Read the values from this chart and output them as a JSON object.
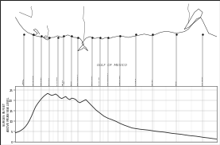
{
  "bg_color": "#ffffff",
  "map_bg": "#ffffff",
  "chart_bg": "#ffffff",
  "line_color": "#222222",
  "grid_color": "#bbbbbb",
  "text_gulf": "GULF  OF  MEXICO",
  "ylabel_lines": [
    "SURGES IN FEET",
    "ABOVE MEAN SEA LEVEL"
  ],
  "yticks": [
    0,
    5,
    10,
    15,
    20,
    25
  ],
  "ylim": [
    0,
    27
  ],
  "map_ratio": 0.6,
  "chart_ratio": 0.4,
  "surge_x": [
    0.0,
    0.01,
    0.02,
    0.03,
    0.04,
    0.05,
    0.06,
    0.07,
    0.08,
    0.09,
    0.1,
    0.11,
    0.12,
    0.13,
    0.14,
    0.15,
    0.16,
    0.17,
    0.18,
    0.19,
    0.2,
    0.21,
    0.22,
    0.23,
    0.24,
    0.25,
    0.26,
    0.27,
    0.28,
    0.29,
    0.3,
    0.31,
    0.32,
    0.33,
    0.34,
    0.35,
    0.36,
    0.37,
    0.38,
    0.39,
    0.4,
    0.42,
    0.44,
    0.46,
    0.48,
    0.5,
    0.52,
    0.54,
    0.56,
    0.58,
    0.6,
    0.62,
    0.64,
    0.66,
    0.68,
    0.7,
    0.72,
    0.74,
    0.76,
    0.78,
    0.8,
    0.82,
    0.84,
    0.86,
    0.88,
    0.9,
    0.92,
    0.94,
    0.96,
    0.98,
    1.0
  ],
  "surge_y": [
    4.5,
    4.8,
    5.2,
    5.8,
    6.5,
    7.5,
    8.8,
    10.5,
    12.5,
    14.8,
    17.0,
    18.5,
    19.8,
    21.0,
    22.0,
    22.8,
    23.5,
    23.0,
    22.5,
    22.8,
    23.2,
    22.5,
    21.5,
    21.0,
    21.5,
    22.0,
    21.0,
    20.5,
    21.2,
    21.0,
    20.5,
    19.5,
    19.0,
    19.5,
    20.0,
    20.5,
    19.5,
    18.5,
    17.5,
    16.5,
    15.5,
    14.0,
    12.5,
    11.5,
    10.8,
    10.0,
    9.0,
    8.2,
    7.5,
    6.8,
    6.5,
    6.2,
    6.0,
    5.8,
    5.5,
    5.2,
    5.0,
    4.8,
    4.5,
    4.2,
    4.0,
    3.8,
    3.5,
    3.2,
    3.0,
    2.8,
    2.5,
    2.2,
    2.0,
    1.7,
    1.5
  ],
  "vert_x": [
    0.04,
    0.09,
    0.13,
    0.17,
    0.21,
    0.24,
    0.28,
    0.31,
    0.38,
    0.42,
    0.46,
    0.52,
    0.6,
    0.68,
    0.8,
    0.93
  ],
  "coast_y_at_vert": [
    0.62,
    0.62,
    0.6,
    0.58,
    0.58,
    0.6,
    0.6,
    0.58,
    0.58,
    0.58,
    0.58,
    0.6,
    0.62,
    0.62,
    0.62,
    0.62
  ]
}
